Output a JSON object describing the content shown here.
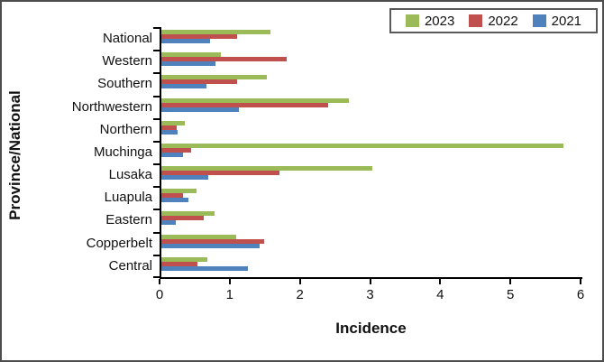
{
  "chart_data": {
    "type": "bar",
    "orientation": "horizontal",
    "xlabel": "Incidence",
    "ylabel": "Province/National",
    "xlim": [
      0,
      6
    ],
    "xticks": [
      "0",
      "1",
      "2",
      "3",
      "4",
      "5",
      "6"
    ],
    "grid": false,
    "legend_position": "top-right",
    "categories": [
      "National",
      "Western",
      "Southern",
      "Northwestern",
      "Northern",
      "Muchinga",
      "Lusaka",
      "Luapula",
      "Eastern",
      "Copperbelt",
      "Central"
    ],
    "series": [
      {
        "name": "2023",
        "color": "#9BBB59",
        "values": [
          1.55,
          0.85,
          1.5,
          2.67,
          0.33,
          5.73,
          3.0,
          0.5,
          0.76,
          1.07,
          0.65
        ]
      },
      {
        "name": "2022",
        "color": "#C0504D",
        "values": [
          1.08,
          1.78,
          1.08,
          2.38,
          0.22,
          0.42,
          1.68,
          0.31,
          0.6,
          1.47,
          0.52
        ]
      },
      {
        "name": "2021",
        "color": "#4F81BD",
        "values": [
          0.7,
          0.77,
          0.64,
          1.1,
          0.23,
          0.31,
          0.67,
          0.39,
          0.21,
          1.4,
          1.23
        ]
      }
    ],
    "axis_color": "#000000",
    "frame_border_color": "#4d4d4d"
  }
}
